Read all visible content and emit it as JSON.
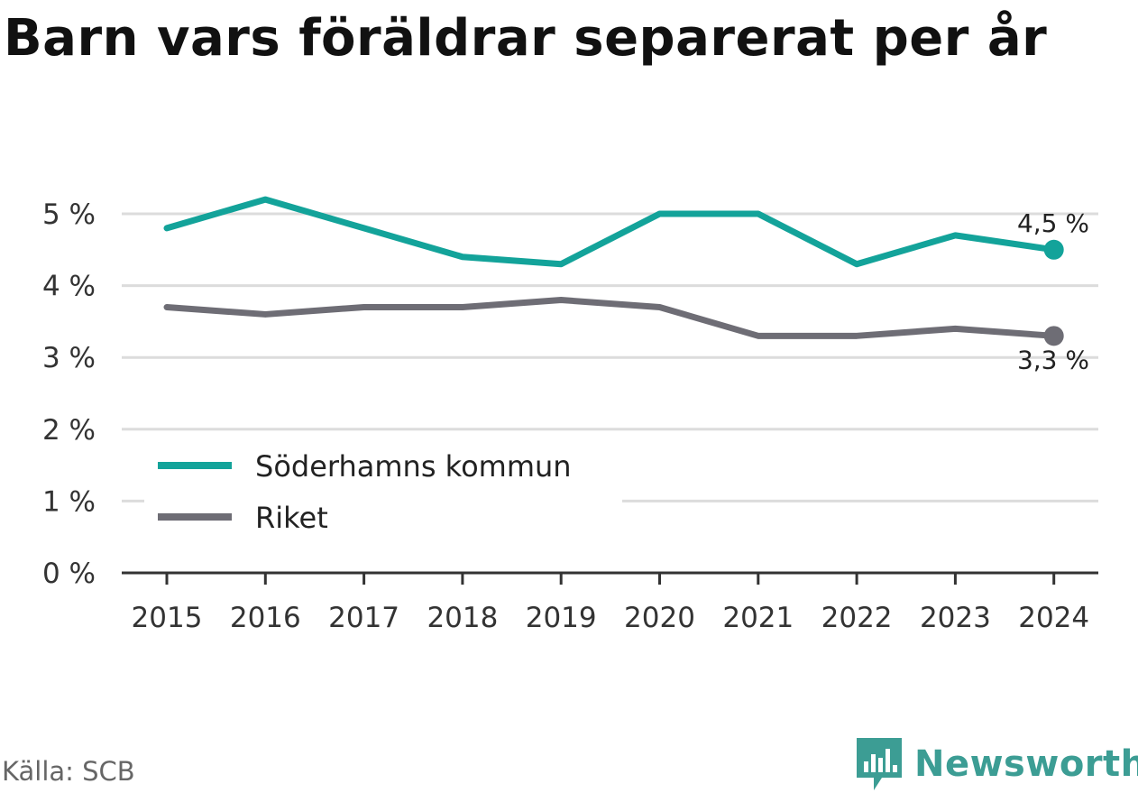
{
  "title": "Barn vars föräldrar separerat per år",
  "source": "Källa: SCB",
  "brand": {
    "name": "Newsworthy",
    "icon": "newsworthy-logo-icon",
    "color": "#3c9d94"
  },
  "chart_data": {
    "type": "line",
    "title": "Barn vars föräldrar separerat per år",
    "x": [
      "2015",
      "2016",
      "2017",
      "2018",
      "2019",
      "2020",
      "2021",
      "2022",
      "2023",
      "2024"
    ],
    "y_ticks": [
      "0 %",
      "1 %",
      "2 %",
      "3 %",
      "4 %",
      "5 %"
    ],
    "ylim": [
      0,
      5.5
    ],
    "unit": "%",
    "grid": true,
    "legend_position": "bottom-left",
    "series": [
      {
        "name": "Söderhamns kommun",
        "color": "#13a39a",
        "values": [
          4.8,
          5.2,
          4.8,
          4.4,
          4.3,
          5.0,
          5.0,
          4.3,
          4.7,
          4.5
        ],
        "end_label": "4,5 %"
      },
      {
        "name": "Riket",
        "color": "#6e6d75",
        "values": [
          3.7,
          3.6,
          3.7,
          3.7,
          3.8,
          3.7,
          3.3,
          3.3,
          3.4,
          3.3
        ],
        "end_label": "3,3 %"
      }
    ]
  }
}
